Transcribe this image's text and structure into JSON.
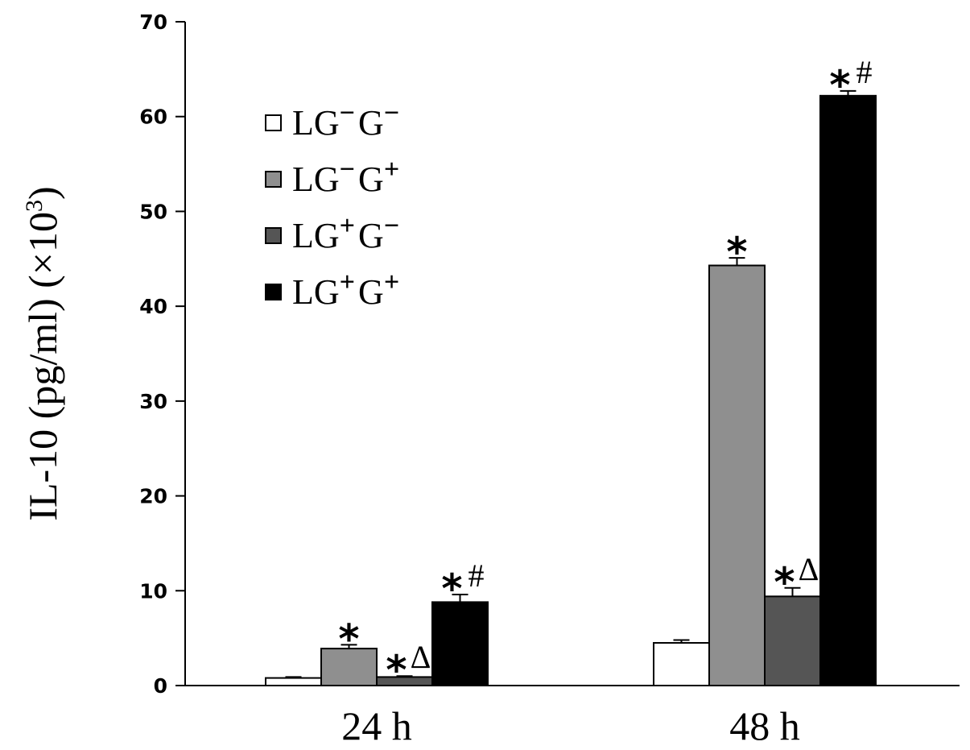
{
  "chart_data": {
    "type": "bar",
    "title": "",
    "xlabel": "",
    "ylabel": "IL-10 (pg/ml) (×10",
    "ylabel_sup": "3",
    "ylabel_close": ")",
    "ylim": [
      0,
      70
    ],
    "yticks": [
      0,
      10,
      20,
      30,
      40,
      50,
      60,
      70
    ],
    "categories": [
      "24 h",
      "48 h"
    ],
    "grid": false,
    "legend_position": "top-left",
    "series": [
      {
        "name": "LG⁻ G⁻",
        "color": "#ffffff",
        "values": [
          0.8,
          4.5
        ],
        "errors": [
          0.1,
          0.3
        ]
      },
      {
        "name": "LG⁻ G⁺",
        "color": "#8f8f8f",
        "values": [
          3.9,
          44.3
        ],
        "errors": [
          0.4,
          0.8
        ]
      },
      {
        "name": "LG⁺ G⁻",
        "color": "#555555",
        "values": [
          0.9,
          9.4
        ],
        "errors": [
          0.1,
          0.9
        ]
      },
      {
        "name": "LG⁺ G⁺",
        "color": "#000000",
        "values": [
          8.8,
          62.2
        ],
        "errors": [
          0.8,
          0.5
        ]
      }
    ],
    "legend_labels": [
      {
        "main": "LG",
        "sup1": "−",
        "g": "G",
        "sup2": "−"
      },
      {
        "main": "LG",
        "sup1": "−",
        "g": "G",
        "sup2": "+"
      },
      {
        "main": "LG",
        "sup1": "+",
        "g": "G",
        "sup2": "−"
      },
      {
        "main": "LG",
        "sup1": "+",
        "g": "G",
        "sup2": "+"
      }
    ],
    "annotations": [
      [
        "",
        "",
        ""
      ],
      [
        "*",
        ""
      ],
      [
        "*",
        "Δ"
      ],
      [
        "*",
        "#"
      ]
    ],
    "annotations_by_cat": [
      [
        [
          "",
          ""
        ],
        [
          "*",
          ""
        ],
        [
          "*",
          "Δ"
        ],
        [
          "*",
          "#"
        ]
      ],
      [
        [
          "",
          ""
        ],
        [
          "*",
          ""
        ],
        [
          "*",
          "Δ"
        ],
        [
          "*",
          "#"
        ]
      ]
    ]
  }
}
